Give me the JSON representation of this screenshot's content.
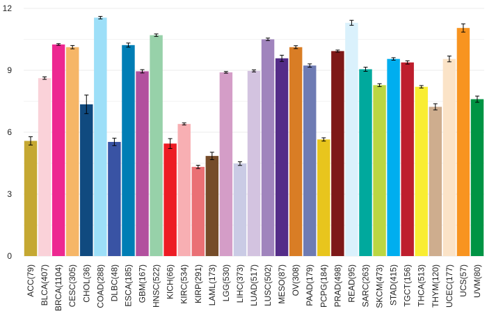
{
  "chart_data": {
    "type": "bar",
    "title": "",
    "xlabel": "",
    "ylabel": "",
    "ylim": [
      0,
      12
    ],
    "yticks": [
      0,
      3,
      6,
      9,
      12
    ],
    "grid": "horizontal",
    "legend": "none",
    "categories": [
      "ACC(79)",
      "BLCA(407)",
      "BRCA(1104)",
      "CESC(305)",
      "CHOL(36)",
      "COAD(288)",
      "DLBC(48)",
      "ESCA(185)",
      "GBM(167)",
      "HNSC(522)",
      "KICH(66)",
      "KIRC(534)",
      "KIRP(291)",
      "LAML(173)",
      "LGG(530)",
      "LIHC(373)",
      "LUAD(517)",
      "LUSC(502)",
      "MESO(87)",
      "OV(308)",
      "PAAD(179)",
      "PCPG(184)",
      "PRAD(498)",
      "READ(95)",
      "SARC(263)",
      "SKCM(473)",
      "STAD(415)",
      "TGCT(156)",
      "THCA(513)",
      "THYM(120)",
      "UCEC(177)",
      "UCS(57)",
      "UVM(80)"
    ],
    "values": [
      5.58,
      8.62,
      10.25,
      10.12,
      7.35,
      11.55,
      5.53,
      10.22,
      8.95,
      10.7,
      5.45,
      6.4,
      4.32,
      4.85,
      8.9,
      4.48,
      8.97,
      10.5,
      9.58,
      10.12,
      9.23,
      5.65,
      9.93,
      11.3,
      9.05,
      8.28,
      9.55,
      9.38,
      8.2,
      7.23,
      9.55,
      11.05,
      7.6
    ],
    "errors": [
      0.2,
      0.06,
      0.04,
      0.08,
      0.45,
      0.06,
      0.18,
      0.1,
      0.08,
      0.06,
      0.24,
      0.05,
      0.08,
      0.18,
      0.04,
      0.09,
      0.05,
      0.06,
      0.15,
      0.07,
      0.08,
      0.08,
      0.05,
      0.12,
      0.1,
      0.07,
      0.06,
      0.08,
      0.06,
      0.15,
      0.14,
      0.2,
      0.15
    ],
    "colors": [
      "#c5a832",
      "#fad2d9",
      "#ed2891",
      "#f6b667",
      "#104a7f",
      "#9ddff8",
      "#3953a4",
      "#007eb5",
      "#b2509e",
      "#97d1a9",
      "#ed1c24",
      "#f8afb3",
      "#ea7075",
      "#754c29",
      "#d49dc7",
      "#cacbe5",
      "#d3c3e0",
      "#a084bd",
      "#542c88",
      "#d97d25",
      "#6e7bb3",
      "#e8c51d",
      "#7e1918",
      "#daf1fc",
      "#00a99d",
      "#bbd642",
      "#00aeef",
      "#be1e2d",
      "#f9ed32",
      "#cead8e",
      "#fbe3c7",
      "#f89420",
      "#009444"
    ]
  }
}
